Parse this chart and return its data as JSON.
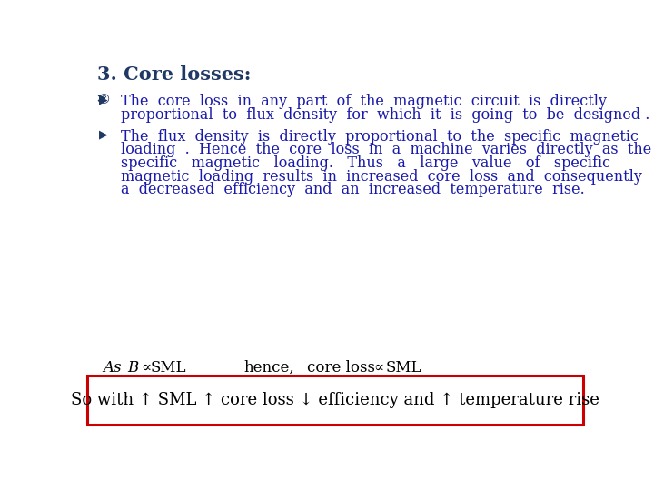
{
  "title": "3. Core losses:",
  "title_color": "#1F3864",
  "title_fontsize": 15,
  "bg_color": "#FFFFFF",
  "bullet_symbol": "©",
  "bullet_color": "#1F3864",
  "body_color": "#1a1aaa",
  "body_fontsize": 11.5,
  "bullet1_line1": "The  core  loss  in  any  part  of  the  magnetic  circuit  is  directly",
  "bullet1_line2": "proportional  to  flux  density  for  which  it  is  going  to  be  designed .",
  "bullet2_line1": "The  flux  density  is  directly  proportional  to  the  specific  magnetic",
  "bullet2_line2": "loading  .  Hence  the  core  loss  in  a  machine  varies  directly  as  the",
  "bullet2_line3": "specific   magnetic   loading.   Thus   a   large   value   of   specific",
  "bullet2_line4": "magnetic  loading  results  in  increased  core  loss  and  consequently",
  "bullet2_line5": "a  decreased  efficiency  and  an  increased  temperature  rise.",
  "formula_as": "As",
  "formula_B": "B",
  "formula_prop1": "∝",
  "formula_SML1": "SML",
  "formula_hence": "hence,",
  "formula_coreloss": "core loss",
  "formula_prop2": "∝",
  "formula_SML2": "SML",
  "box_line": "So with ↑ SML ↑ core loss ↓ efficiency and ↑ temperature rise",
  "formula_color": "#000000",
  "box_border_color": "#CC0000",
  "box_text_color": "#000000"
}
